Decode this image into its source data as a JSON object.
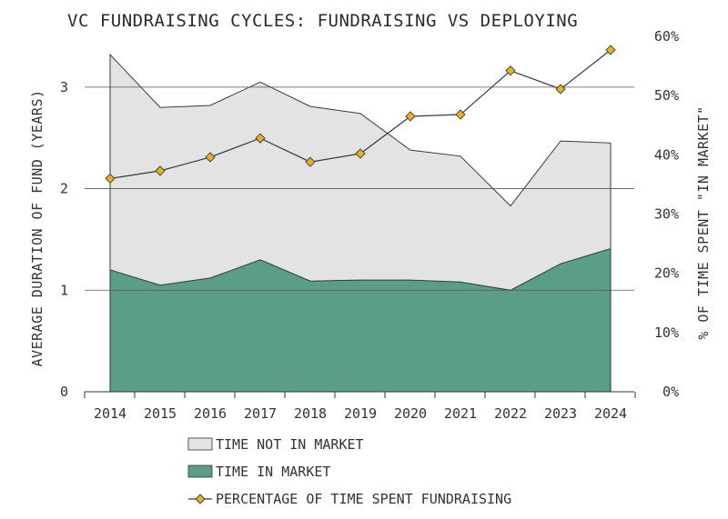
{
  "chart_data": {
    "type": "area",
    "title": "VC FUNDRAISING CYCLES: FUNDRAISING VS DEPLOYING",
    "ylabel": "AVERAGE DURATION OF FUND (YEARS)",
    "y2label": "% OF TIME SPENT \"IN MARKET\"",
    "categories": [
      "2014",
      "2015",
      "2016",
      "2017",
      "2018",
      "2019",
      "2020",
      "2021",
      "2022",
      "2023",
      "2024"
    ],
    "ylim": [
      0,
      3.5
    ],
    "yticks": [
      0,
      1,
      2,
      3
    ],
    "ytick_labels": [
      "0",
      "1",
      "2",
      "3"
    ],
    "y2lim": [
      0,
      60
    ],
    "y2ticks": [
      0,
      10,
      20,
      30,
      40,
      50,
      60
    ],
    "y2tick_labels": [
      "0%",
      "10%",
      "20%",
      "30%",
      "40%",
      "50%",
      "60%"
    ],
    "grid": "horizontal at major y ticks",
    "legend_position": "bottom",
    "series": [
      {
        "name": "TIME NOT IN MARKET",
        "kind": "stacked-area",
        "axis": "left",
        "color": "#e3e3e3",
        "values": [
          2.12,
          1.75,
          1.7,
          1.75,
          1.72,
          1.64,
          1.28,
          1.24,
          0.83,
          1.21,
          1.04
        ]
      },
      {
        "name": "TIME IN MARKET",
        "kind": "stacked-area",
        "axis": "left",
        "color": "#5a9e86",
        "values": [
          1.2,
          1.05,
          1.12,
          1.3,
          1.09,
          1.1,
          1.1,
          1.08,
          1.0,
          1.26,
          1.41
        ]
      },
      {
        "name": "PERCENTAGE OF TIME SPENT FUNDRAISING",
        "kind": "line",
        "axis": "right",
        "color": "#2f3a48",
        "marker": "diamond",
        "marker_color": "#e8b31c",
        "values": [
          36.0,
          37.3,
          39.6,
          42.8,
          38.8,
          40.2,
          46.5,
          46.8,
          54.2,
          51.1,
          57.7
        ]
      }
    ]
  }
}
